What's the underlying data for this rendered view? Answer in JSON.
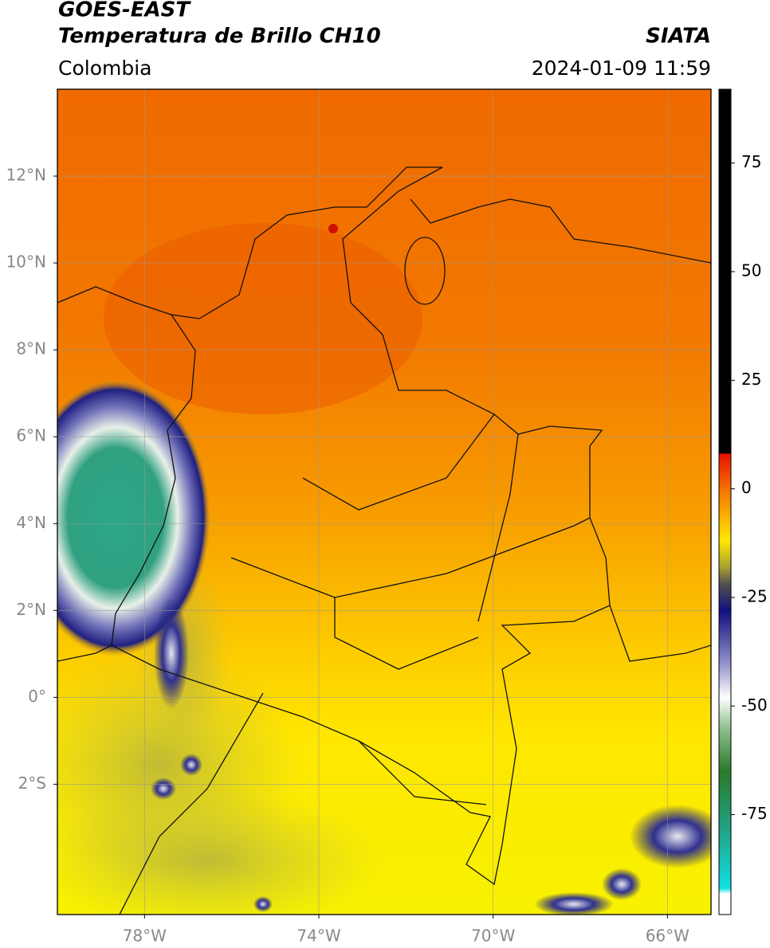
{
  "header": {
    "title": "GOES-EAST",
    "subtitle": "Temperatura de Brillo CH10",
    "source": "SIATA",
    "region": "Colombia",
    "datetime": "2024-01-09 11:59"
  },
  "map": {
    "lon_range": [
      -80,
      -65
    ],
    "lat_range": [
      -5,
      14
    ],
    "lat_ticks": [
      {
        "value": 12,
        "label": "12°N"
      },
      {
        "value": 10,
        "label": "10°N"
      },
      {
        "value": 8,
        "label": "8°N"
      },
      {
        "value": 6,
        "label": "6°N"
      },
      {
        "value": 4,
        "label": "4°N"
      },
      {
        "value": 2,
        "label": "2°N"
      },
      {
        "value": 0,
        "label": "0°"
      },
      {
        "value": -2,
        "label": "2°S"
      }
    ],
    "lon_ticks": [
      {
        "value": -78,
        "label": "78°W"
      },
      {
        "value": -74,
        "label": "74°W"
      },
      {
        "value": -70,
        "label": "70°W"
      },
      {
        "value": -66,
        "label": "66°W"
      }
    ]
  },
  "colorbar": {
    "range": [
      -98,
      92
    ],
    "ticks": [
      75,
      50,
      25,
      0,
      -25,
      -50,
      -75
    ]
  }
}
